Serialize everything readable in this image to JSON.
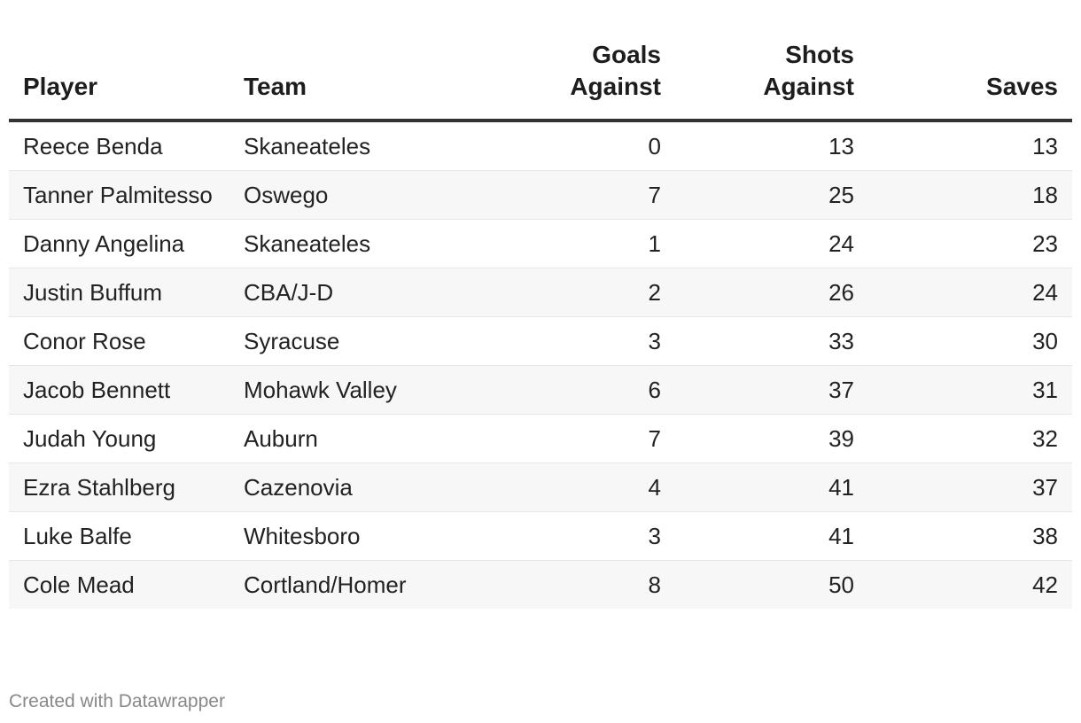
{
  "chart_data": {
    "type": "table",
    "columns": [
      "Player",
      "Team",
      "Goals Against",
      "Shots Against",
      "Saves"
    ],
    "rows": [
      {
        "player": "Reece Benda",
        "team": "Skaneateles",
        "goals_against": 0,
        "shots_against": 13,
        "saves": 13
      },
      {
        "player": "Tanner Palmitesso",
        "team": "Oswego",
        "goals_against": 7,
        "shots_against": 25,
        "saves": 18
      },
      {
        "player": "Danny Angelina",
        "team": "Skaneateles",
        "goals_against": 1,
        "shots_against": 24,
        "saves": 23
      },
      {
        "player": "Justin Buffum",
        "team": "CBA/J-D",
        "goals_against": 2,
        "shots_against": 26,
        "saves": 24
      },
      {
        "player": "Conor Rose",
        "team": "Syracuse",
        "goals_against": 3,
        "shots_against": 33,
        "saves": 30
      },
      {
        "player": "Jacob Bennett",
        "team": "Mohawk Valley",
        "goals_against": 6,
        "shots_against": 37,
        "saves": 31
      },
      {
        "player": "Judah Young",
        "team": "Auburn",
        "goals_against": 7,
        "shots_against": 39,
        "saves": 32
      },
      {
        "player": "Ezra Stahlberg",
        "team": "Cazenovia",
        "goals_against": 4,
        "shots_against": 41,
        "saves": 37
      },
      {
        "player": "Luke Balfe",
        "team": "Whitesboro",
        "goals_against": 3,
        "shots_against": 41,
        "saves": 38
      },
      {
        "player": "Cole Mead",
        "team": "Cortland/Homer",
        "goals_against": 8,
        "shots_against": 50,
        "saves": 42
      }
    ]
  },
  "footer": {
    "credit": "Created with Datawrapper"
  }
}
